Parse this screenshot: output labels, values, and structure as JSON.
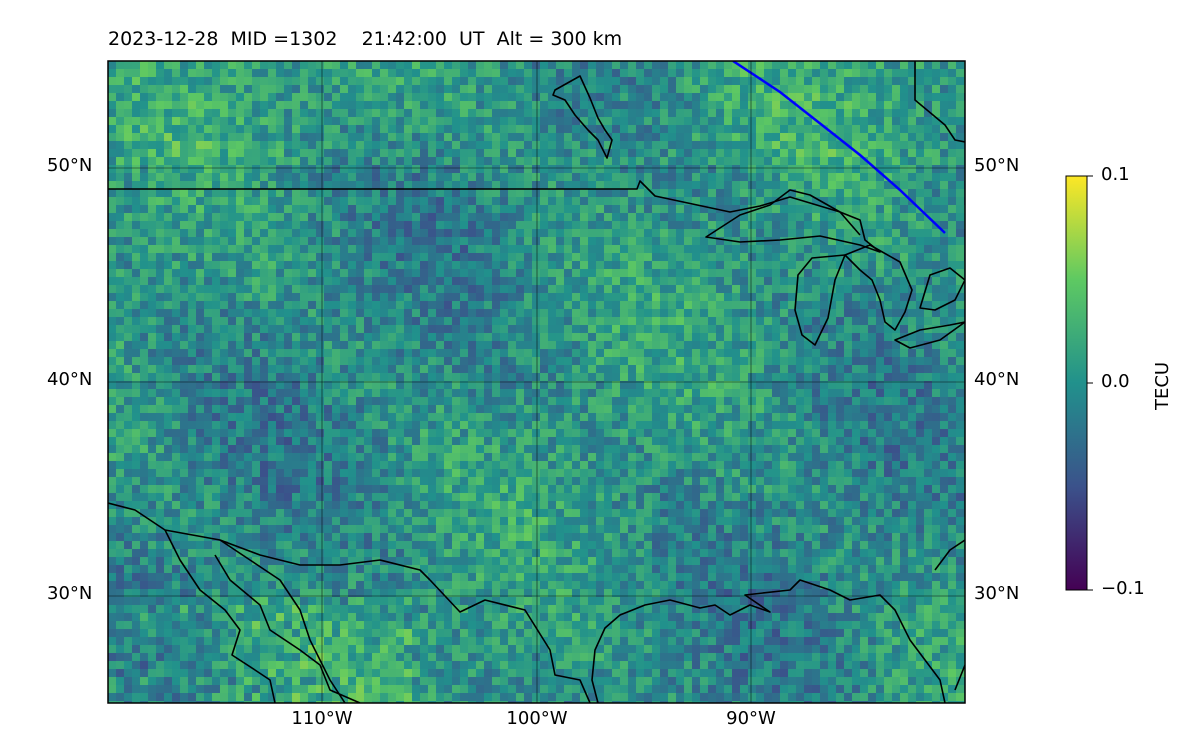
{
  "title": "2023-12-28  MID =1302    21:42:00  UT  Alt = 300 km",
  "lat_labels": [
    "50°N",
    "40°N",
    "30°N"
  ],
  "lon_labels": [
    "110°W",
    "100°W",
    "90°W"
  ],
  "colorbar": {
    "label": "TECU",
    "ticks": [
      "0.1",
      "0.0",
      "−0.1"
    ],
    "min": -0.1,
    "max": 0.1,
    "colormap": "viridis",
    "colors": [
      "#440154",
      "#3b528b",
      "#21918c",
      "#5ec962",
      "#fde725"
    ]
  },
  "map": {
    "projection": "PlateCarree",
    "lon_range": [
      -120,
      -80
    ],
    "lat_range": [
      25,
      55
    ],
    "gridlines": true,
    "overlay_line_color": "#0000ff"
  }
}
